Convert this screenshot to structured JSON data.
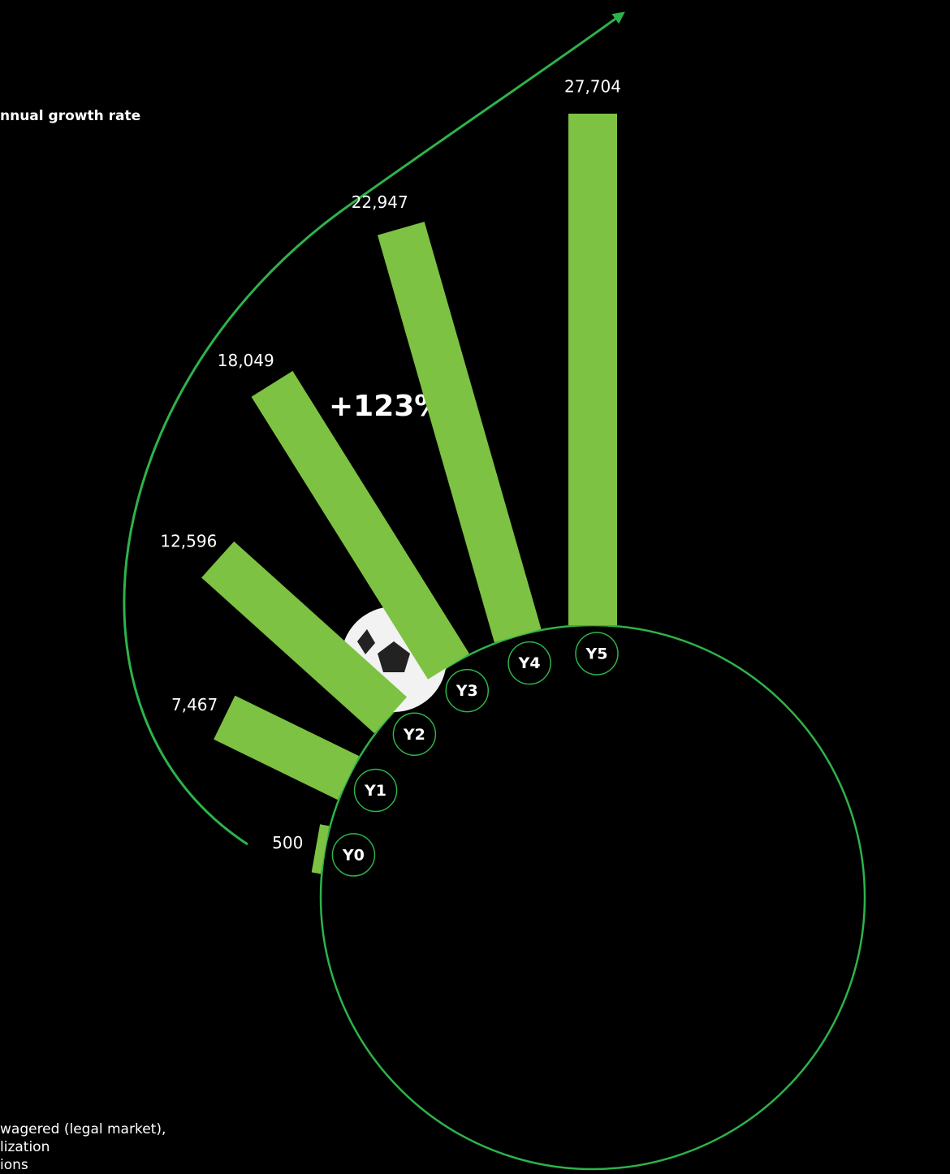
{
  "chart_data": {
    "type": "radial-bar",
    "title": "nnual growth rate",
    "annotation": "+123%",
    "categories": [
      "Y0",
      "Y1",
      "Y2",
      "Y3",
      "Y4",
      "Y5"
    ],
    "values": [
      500,
      7467,
      12596,
      18049,
      22947,
      27704
    ],
    "value_labels": [
      "500",
      "7,467",
      "12,596",
      "18,049",
      "22,947",
      "27,704"
    ],
    "color": "#7dc242",
    "notes": [
      "wagered  (legal market),",
      "lization",
      "ions"
    ]
  }
}
